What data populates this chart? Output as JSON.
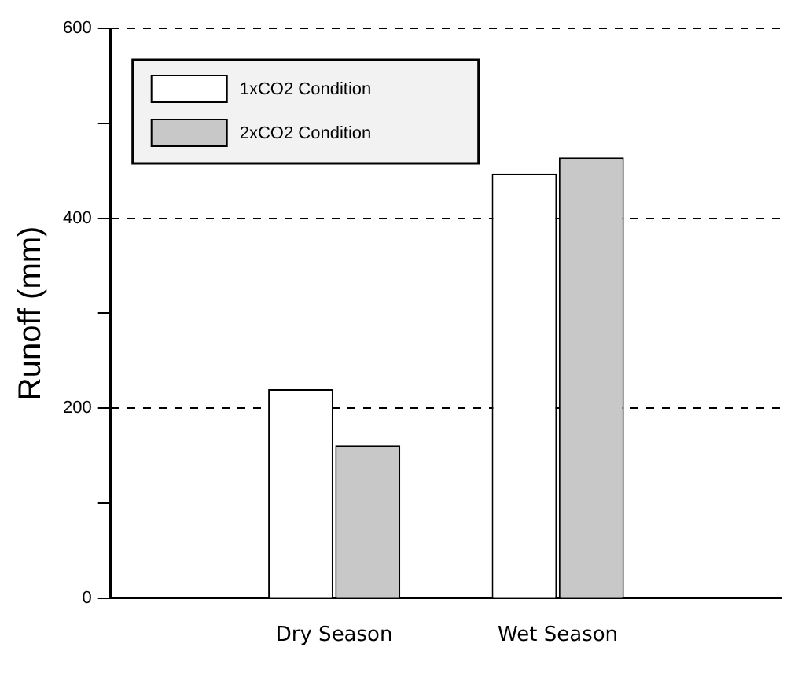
{
  "chart_data": {
    "type": "bar",
    "ylabel": "Runoff (mm)",
    "categories": [
      null,
      "Dry Season",
      "Wet Season",
      null
    ],
    "series": [
      {
        "name": "1xCO2 Condition",
        "color": "#ffffff",
        "values": [
          null,
          220,
          447,
          null
        ]
      },
      {
        "name": "2xCO2 Condition",
        "color": "#c8c8c8",
        "values": [
          null,
          161,
          464,
          null
        ]
      }
    ],
    "ylim": [
      0,
      600
    ],
    "yticks": [
      0,
      {
        "value": 100,
        "label": null
      },
      200,
      {
        "value": 300,
        "label": null
      },
      400,
      {
        "value": 500,
        "label": null
      },
      600
    ],
    "grid": "y",
    "line_style": "dashed",
    "legend": "top left"
  }
}
